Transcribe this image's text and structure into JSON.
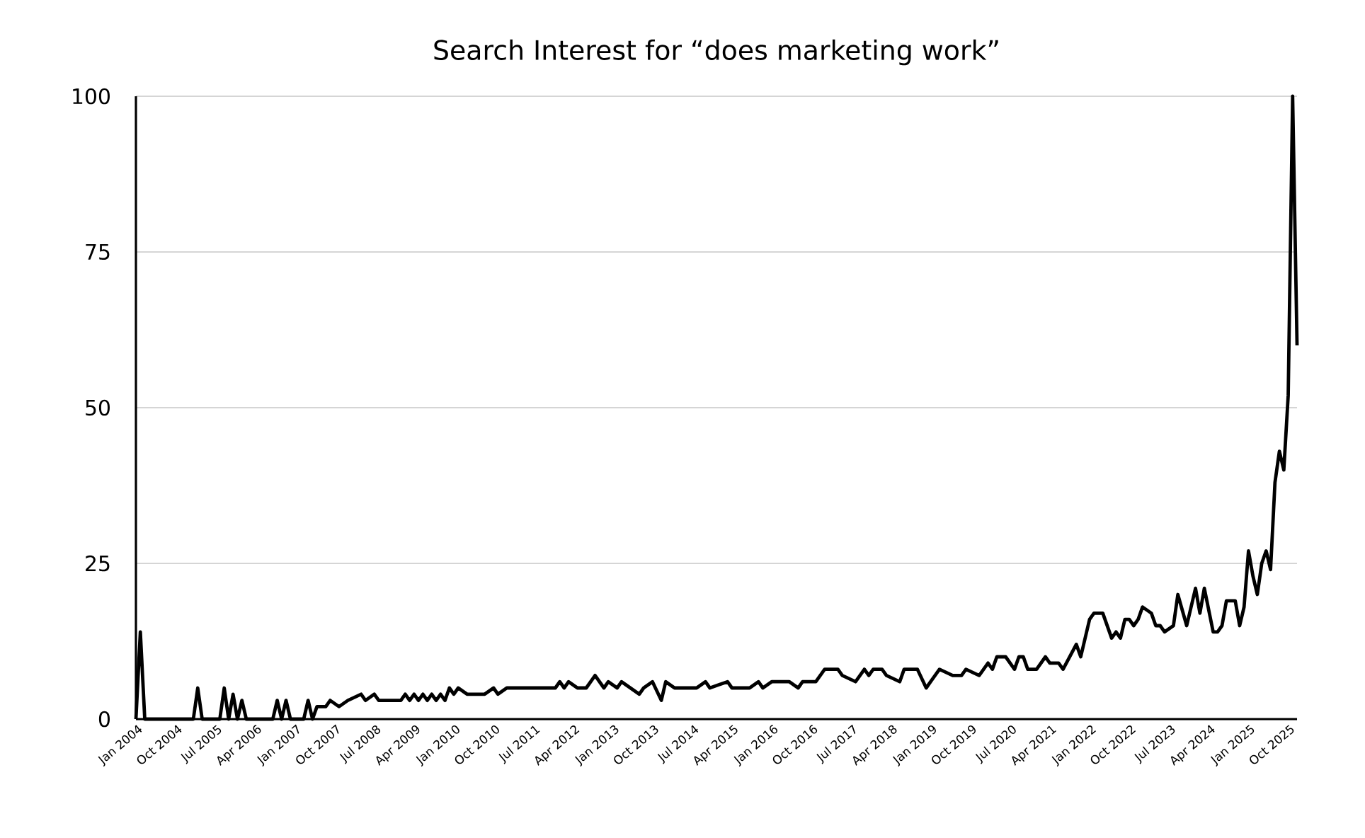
{
  "chart_data": {
    "type": "line",
    "title": "Search Interest for “does marketing work”",
    "x": [
      "2004-01",
      "2004-02",
      "2004-03",
      "2005-02",
      "2005-03",
      "2005-04",
      "2005-08",
      "2005-09",
      "2005-10",
      "2005-11",
      "2005-12",
      "2006-01",
      "2006-02",
      "2006-08",
      "2006-09",
      "2006-10",
      "2006-11",
      "2006-12",
      "2007-03",
      "2007-04",
      "2007-05",
      "2007-06",
      "2007-08",
      "2007-09",
      "2007-11",
      "2008-01",
      "2008-04",
      "2008-05",
      "2008-07",
      "2008-08",
      "2009-01",
      "2009-02",
      "2009-03",
      "2009-04",
      "2009-05",
      "2009-06",
      "2009-07",
      "2009-08",
      "2009-09",
      "2009-10",
      "2009-11",
      "2009-12",
      "2010-01",
      "2010-02",
      "2010-04",
      "2010-08",
      "2010-10",
      "2010-11",
      "2011-01",
      "2011-12",
      "2012-01",
      "2012-02",
      "2012-03",
      "2012-05",
      "2012-07",
      "2012-09",
      "2012-11",
      "2012-12",
      "2013-02",
      "2013-03",
      "2013-05",
      "2013-07",
      "2013-08",
      "2013-10",
      "2013-12",
      "2014-01",
      "2014-03",
      "2014-08",
      "2014-10",
      "2014-11",
      "2015-03",
      "2015-04",
      "2015-08",
      "2015-10",
      "2015-11",
      "2016-01",
      "2016-05",
      "2016-07",
      "2016-08",
      "2016-11",
      "2017-01",
      "2017-04",
      "2017-05",
      "2017-08",
      "2017-10",
      "2017-11",
      "2017-12",
      "2018-02",
      "2018-03",
      "2018-06",
      "2018-07",
      "2018-10",
      "2018-12",
      "2019-01",
      "2019-03",
      "2019-06",
      "2019-08",
      "2019-09",
      "2019-12",
      "2020-02",
      "2020-03",
      "2020-04",
      "2020-06",
      "2020-07",
      "2020-08",
      "2020-09",
      "2020-10",
      "2020-11",
      "2021-01",
      "2021-03",
      "2021-04",
      "2021-06",
      "2021-07",
      "2021-10",
      "2021-11",
      "2022-01",
      "2022-02",
      "2022-04",
      "2022-06",
      "2022-07",
      "2022-08",
      "2022-09",
      "2022-10",
      "2022-11",
      "2022-12",
      "2023-01",
      "2023-03",
      "2023-04",
      "2023-05",
      "2023-06",
      "2023-08",
      "2023-09",
      "2023-11",
      "2024-01",
      "2024-02",
      "2024-03",
      "2024-05",
      "2024-06",
      "2024-07",
      "2024-08",
      "2024-10",
      "2024-11",
      "2024-12",
      "2025-01",
      "2025-02",
      "2025-03",
      "2025-04",
      "2025-05",
      "2025-06",
      "2025-07",
      "2025-08",
      "2025-09",
      "2025-10",
      "2025-11",
      "2025-12"
    ],
    "series": [
      {
        "color": "#000000",
        "values": [
          0,
          14,
          0,
          0,
          5,
          0,
          0,
          5,
          0,
          4,
          0,
          3,
          0,
          0,
          3,
          0,
          3,
          0,
          0,
          3,
          0,
          2,
          2,
          3,
          2,
          3,
          4,
          3,
          4,
          3,
          3,
          4,
          3,
          4,
          3,
          4,
          3,
          4,
          3,
          4,
          3,
          5,
          4,
          5,
          4,
          4,
          5,
          4,
          5,
          5,
          6,
          5,
          6,
          5,
          5,
          7,
          5,
          6,
          5,
          6,
          5,
          4,
          5,
          6,
          3,
          6,
          5,
          5,
          6,
          5,
          6,
          5,
          5,
          6,
          5,
          6,
          6,
          5,
          6,
          6,
          8,
          8,
          7,
          6,
          8,
          7,
          8,
          8,
          7,
          6,
          8,
          8,
          5,
          6,
          8,
          7,
          7,
          8,
          7,
          9,
          8,
          10,
          10,
          9,
          8,
          10,
          10,
          8,
          8,
          10,
          9,
          9,
          8,
          12,
          10,
          16,
          17,
          17,
          13,
          14,
          13,
          16,
          16,
          15,
          16,
          18,
          17,
          15,
          15,
          14,
          15,
          20,
          15,
          21,
          17,
          21,
          14,
          14,
          15,
          19,
          19,
          15,
          18,
          27,
          23,
          20,
          25,
          27,
          24,
          38,
          43,
          40,
          52,
          100,
          60
        ]
      }
    ],
    "xlim": [
      "2004-01",
      "2025-12"
    ],
    "xticks": [
      {
        "value": "2004-01",
        "label": "Jan 2004"
      },
      {
        "value": "2004-10",
        "label": "Oct 2004"
      },
      {
        "value": "2005-07",
        "label": "Jul 2005"
      },
      {
        "value": "2006-04",
        "label": "Apr 2006"
      },
      {
        "value": "2007-01",
        "label": "Jan 2007"
      },
      {
        "value": "2007-10",
        "label": "Oct 2007"
      },
      {
        "value": "2008-07",
        "label": "Jul 2008"
      },
      {
        "value": "2009-04",
        "label": "Apr 2009"
      },
      {
        "value": "2010-01",
        "label": "Jan 2010"
      },
      {
        "value": "2010-10",
        "label": "Oct 2010"
      },
      {
        "value": "2011-07",
        "label": "Jul 2011"
      },
      {
        "value": "2012-04",
        "label": "Apr 2012"
      },
      {
        "value": "2013-01",
        "label": "Jan 2013"
      },
      {
        "value": "2013-10",
        "label": "Oct 2013"
      },
      {
        "value": "2014-07",
        "label": "Jul 2014"
      },
      {
        "value": "2015-04",
        "label": "Apr 2015"
      },
      {
        "value": "2016-01",
        "label": "Jan 2016"
      },
      {
        "value": "2016-10",
        "label": "Oct 2016"
      },
      {
        "value": "2017-07",
        "label": "Jul 2017"
      },
      {
        "value": "2018-04",
        "label": "Apr 2018"
      },
      {
        "value": "2019-01",
        "label": "Jan 2019"
      },
      {
        "value": "2019-10",
        "label": "Oct 2019"
      },
      {
        "value": "2020-07",
        "label": "Jul 2020"
      },
      {
        "value": "2021-04",
        "label": "Apr 2021"
      },
      {
        "value": "2022-01",
        "label": "Jan 2022"
      },
      {
        "value": "2022-10",
        "label": "Oct 2022"
      },
      {
        "value": "2023-07",
        "label": "Jul 2023"
      },
      {
        "value": "2024-04",
        "label": "Apr 2024"
      },
      {
        "value": "2025-01",
        "label": "Jan 2025"
      },
      {
        "value": "2025-10",
        "label": "Oct 2025"
      }
    ],
    "ylim": [
      0,
      100
    ],
    "yticks": [
      0,
      25,
      50,
      75,
      100
    ],
    "grid": "y",
    "line_style": "solid",
    "marker": "none"
  }
}
